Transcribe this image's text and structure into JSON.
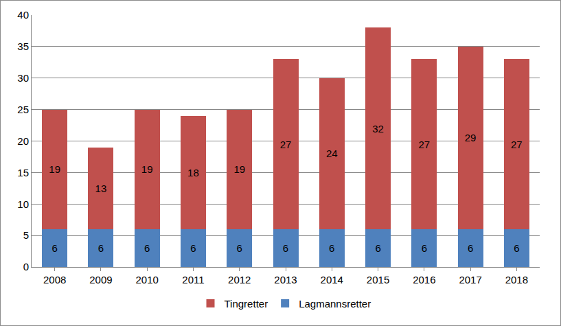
{
  "chart_data": {
    "type": "bar",
    "stacked": true,
    "categories": [
      "2008",
      "2009",
      "2010",
      "2011",
      "2012",
      "2013",
      "2014",
      "2015",
      "2016",
      "2017",
      "2018"
    ],
    "series": [
      {
        "name": "Lagmannsretter",
        "color": "#4f81bd",
        "values": [
          6,
          6,
          6,
          6,
          6,
          6,
          6,
          6,
          6,
          6,
          6
        ]
      },
      {
        "name": "Tingretter",
        "color": "#c0504d",
        "values": [
          19,
          13,
          19,
          18,
          19,
          27,
          24,
          32,
          27,
          29,
          27
        ]
      }
    ],
    "ylim": [
      0,
      40
    ],
    "yticks": [
      0,
      5,
      10,
      15,
      20,
      25,
      30,
      35,
      40
    ],
    "grid": true,
    "legend": "bottom",
    "data_labels": true
  }
}
